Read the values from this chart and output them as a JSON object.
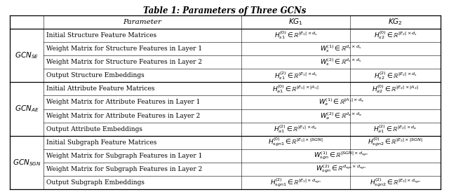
{
  "title": "Table 1: Parameters of Three GCNs",
  "title_fontsize": 8.5,
  "col_headers": [
    "Parameter",
    "$KG_1$",
    "$KG_2$"
  ],
  "row_groups": [
    {
      "group_label": "$GCN_{SE}$",
      "rows": [
        [
          "Initial Structure Feature Matrices",
          "$H_{s1}^{(0)} \\in \\mathbb{R}^{|E_1|\\times d_s}$",
          "$H_{s2}^{(0)} \\in \\mathbb{R}^{|E_2|\\times d_s}$"
        ],
        [
          "Weight Matrix for Structure Features in Layer 1",
          "$W_s^{(1)} \\in \\mathbb{R}^{d_s \\times d_s}$",
          ""
        ],
        [
          "Weight Matrix for Structure Features in Layer 2",
          "$W_s^{(2)} \\in \\mathbb{R}^{d_s \\times d_s}$",
          ""
        ],
        [
          "Output Structure Embeddings",
          "$H_{s1}^{(2)} \\in \\mathbb{R}^{|E_1|\\times d_s}$",
          "$H_{s2}^{(2)} \\in \\mathbb{R}^{|E_2|\\times d_s}$"
        ]
      ]
    },
    {
      "group_label": "$GCN_{AE}$",
      "rows": [
        [
          "Initial Attribute Feature Matrices",
          "$H_{a1}^{(0)} \\in \\mathbb{R}^{|E_1|\\times |A_1|}$",
          "$H_{a2}^{(0)} \\in \\mathbb{R}^{|E_2|\\times |A_2|}$"
        ],
        [
          "Weight Matrix for Attribute Features in Layer 1",
          "$W_a^{(1)} \\in \\mathbb{R}^{|A_1|\\times d_a}$",
          ""
        ],
        [
          "Weight Matrix for Attribute Features in Layer 2",
          "$W_a^{(2)} \\in \\mathbb{R}^{d_a \\times d_a}$",
          ""
        ],
        [
          "Output Attribute Embeddings",
          "$H_{a1}^{(2)} \\in \\mathbb{R}^{|E_1|\\times d_a}$",
          "$H_{a1}^{(2)} \\in \\mathbb{R}^{|E_2|\\times d_a}$"
        ]
      ]
    },
    {
      "group_label": "$GCN_{SGN}$",
      "rows": [
        [
          "Initial Subgraph Feature Matrices",
          "$H_{sgn1}^{(0)} \\in \\mathbb{R}^{|E_1|\\times |SGN|}$",
          "$H_{sgn2}^{(0)} \\in \\mathbb{R}^{|E_2|\\times |SGN|}$"
        ],
        [
          "Weight Matrix for Subgraph Features in Layer 1",
          "$W_{sgn}^{(1)} \\in \\mathbb{R}^{|SGN|\\times d_{sgn}}$",
          ""
        ],
        [
          "Weight Matrix for Subgraph Features in Layer 2",
          "$W_{sgn}^{(2)} \\in \\mathbb{R}^{d_{sgn} \\times d_{sgn}}$",
          ""
        ],
        [
          "Output Subgraph Embeddings",
          "$H_{sgn1}^{(2)} \\in \\mathbb{R}^{|E_1|\\times d_{sgn}}$",
          "$H_{sgn2}^{(2)} \\in \\mathbb{R}^{|E_2|\\times d_{sgn}}$"
        ]
      ]
    }
  ],
  "bg_color": "#ffffff",
  "text_color": "#000000",
  "line_color": "#000000",
  "font_size": 6.5,
  "header_font_size": 7.5,
  "group_font_size": 7.5
}
